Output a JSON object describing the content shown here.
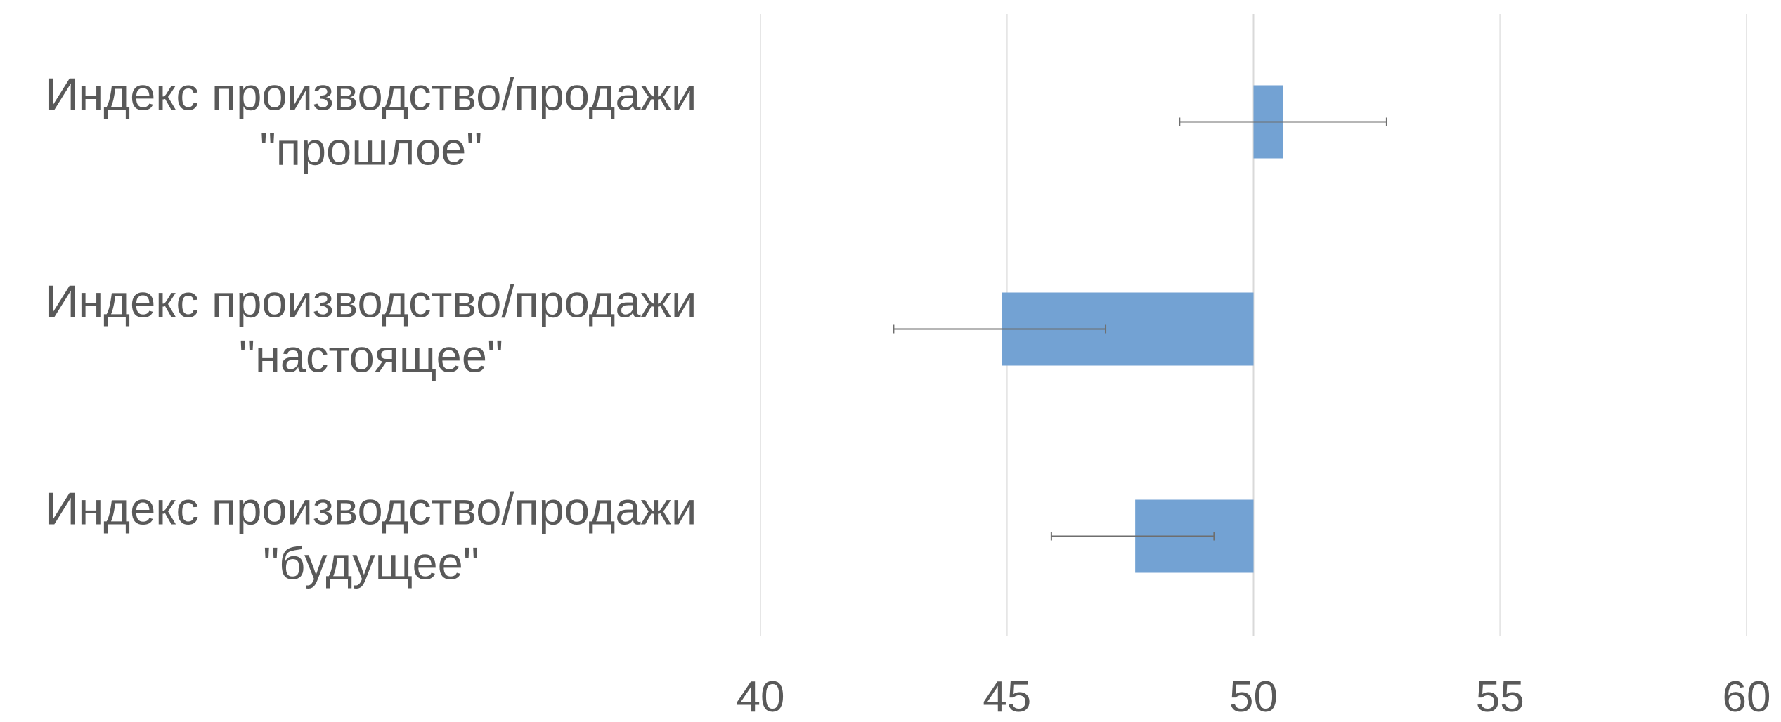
{
  "chart_data": {
    "type": "bar",
    "orientation": "horizontal",
    "title": "",
    "xlabel": "",
    "ylabel": "",
    "categories": [
      [
        "Индекс производство/продажи",
        "\"прошлое\""
      ],
      [
        "Индекс производство/продажи",
        "\"настоящее\""
      ],
      [
        "Индекс производство/продажи",
        "\"будущее\""
      ]
    ],
    "baseline": 50,
    "values": [
      50.6,
      44.9,
      47.6
    ],
    "error_bars": [
      {
        "low": 48.5,
        "high": 52.7
      },
      {
        "low": 42.7,
        "high": 47.0
      },
      {
        "low": 45.9,
        "high": 49.2
      }
    ],
    "xlim": [
      40,
      60
    ],
    "xticks": [
      "40",
      "45",
      "50",
      "55",
      "60"
    ],
    "grid": true,
    "legend": "none",
    "colors": {
      "bar": "#73A2D3",
      "grid": "#E6E6E6",
      "error_bar": "#6E6E6E",
      "text": "#595959"
    }
  }
}
